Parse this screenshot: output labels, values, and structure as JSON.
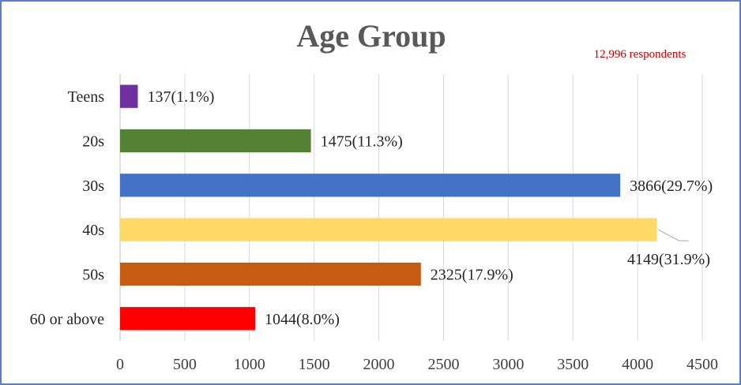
{
  "chart_data": {
    "type": "bar",
    "orientation": "horizontal",
    "title": "Age Group",
    "annotation": "12,996  respondents",
    "categories": [
      "Teens",
      "20s",
      "30s",
      "40s",
      "50s",
      "60 or above"
    ],
    "values": [
      137,
      1475,
      3866,
      4149,
      2325,
      1044
    ],
    "data_labels": [
      "137(1.1%)",
      "1475(11.3%)",
      "3866(29.7%)",
      "4149(31.9%)",
      "2325(17.9%)",
      "1044(8.0%)"
    ],
    "colors": [
      "#7030a0",
      "#548235",
      "#4472c4",
      "#ffd966",
      "#c55a11",
      "#ff0000"
    ],
    "xlim": [
      0,
      4500
    ],
    "xticks": [
      0,
      500,
      1000,
      1500,
      2000,
      2500,
      3000,
      3500,
      4000,
      4500
    ],
    "xtick_labels": [
      "0",
      "500",
      "1000",
      "1500",
      "2000",
      "2500",
      "3000",
      "3500",
      "4000",
      "4500"
    ],
    "grid": true,
    "legend": "none"
  }
}
